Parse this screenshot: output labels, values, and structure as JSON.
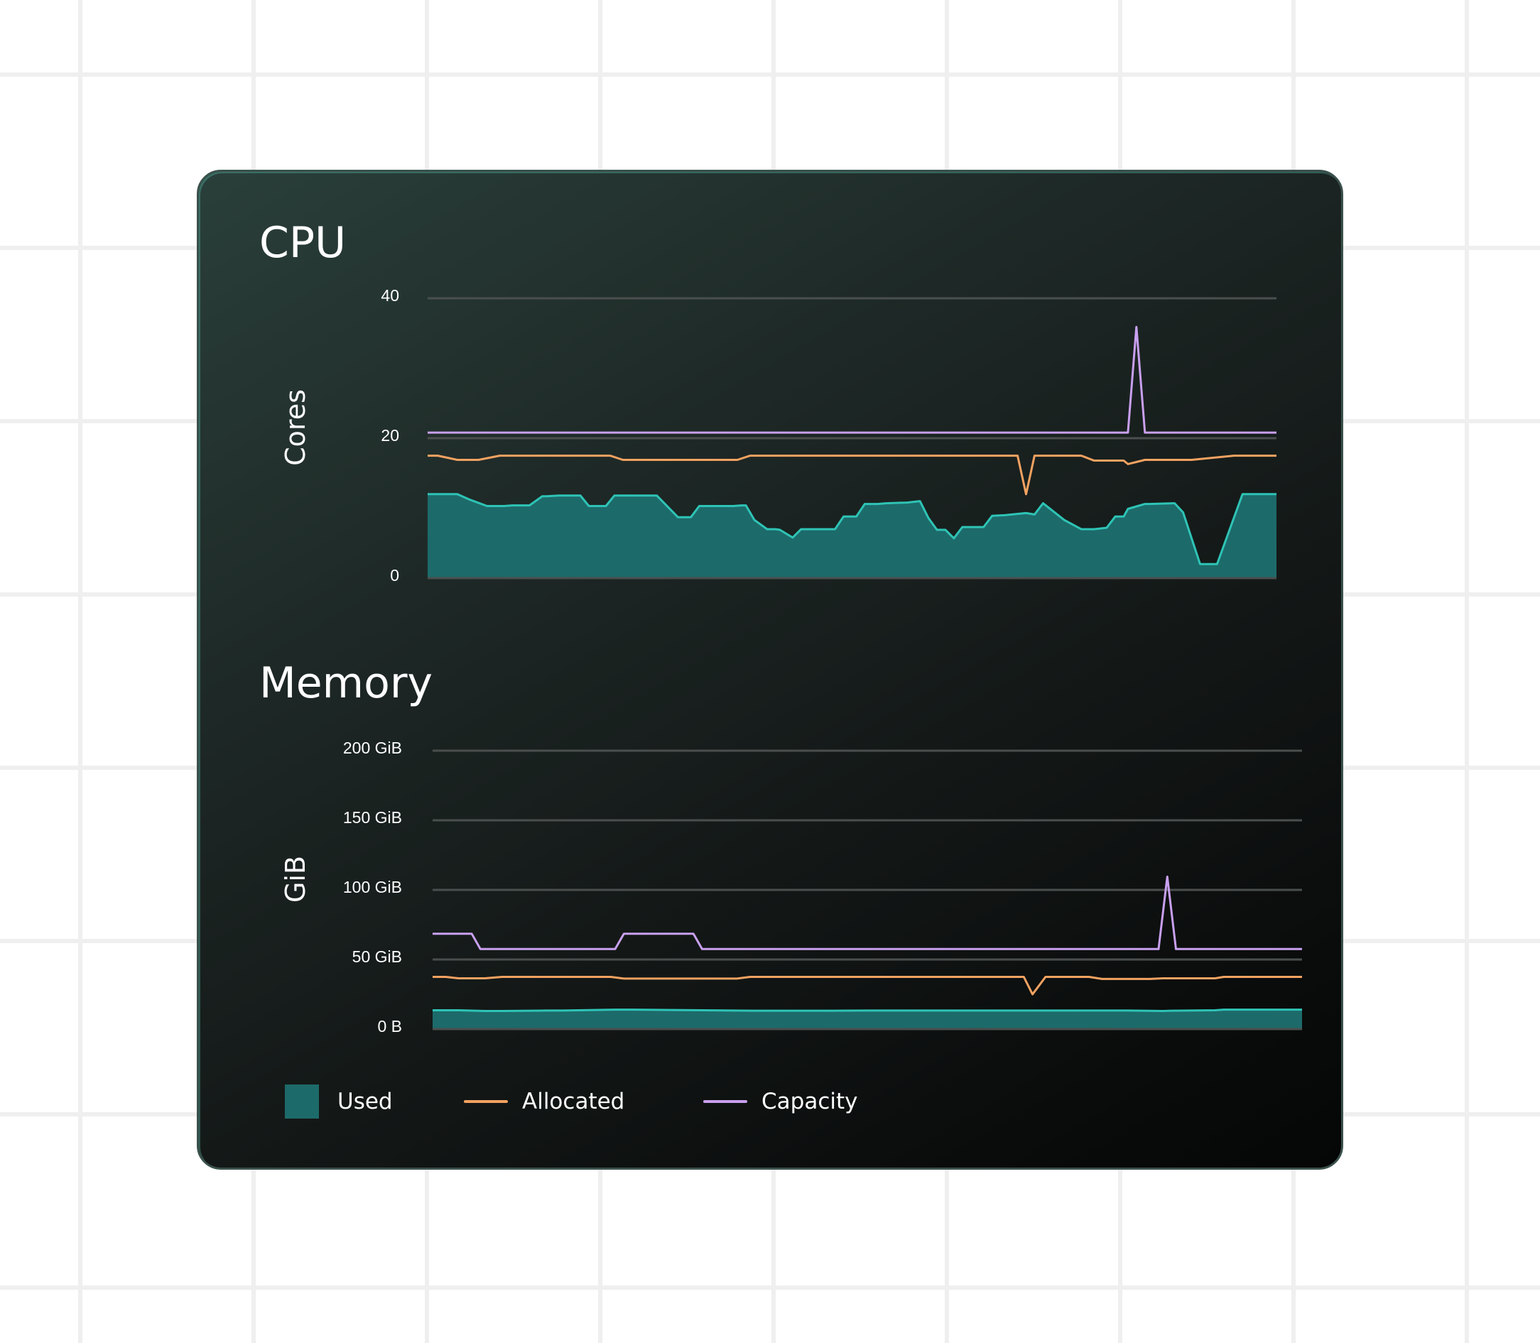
{
  "colors": {
    "used_fill": "#1d6a6a",
    "used_line": "#2ec4b6",
    "allocated": "#f4a261",
    "capacity": "#c9a0f0",
    "grid": "#4a4f4e"
  },
  "chart_data": [
    {
      "type": "area",
      "title": "CPU",
      "xlabel": "",
      "ylabel": "Cores",
      "ylim": [
        0,
        40
      ],
      "yticks": [
        "0",
        "20",
        "40"
      ],
      "grid": true,
      "series": [
        {
          "name": "Used",
          "kind": "area",
          "x": [
            0,
            3,
            3.5,
            5,
            7,
            9,
            10,
            12,
            13.5,
            14,
            15.5,
            16,
            18,
            19,
            21,
            22,
            23,
            24,
            25,
            27,
            29.5,
            31,
            32,
            35,
            36,
            37,
            37.5,
            38.5,
            40,
            41,
            41.5,
            43,
            44,
            48,
            49,
            50.5,
            51.5,
            52,
            53,
            54,
            56.5,
            58,
            59,
            60,
            61,
            62,
            63,
            64,
            65.5,
            66.5,
            68,
            70.5,
            71.5,
            72.5,
            75,
            77,
            78,
            78.5,
            80,
            81,
            82,
            82.5,
            84.5,
            85,
            88,
            89,
            91,
            93,
            96,
            100
          ],
          "values": [
            12.0,
            12.0,
            12.0,
            11.2,
            10.3,
            10.3,
            10.4,
            10.4,
            11.7,
            11.7,
            11.8,
            11.8,
            11.8,
            10.3,
            10.3,
            11.8,
            11.8,
            11.8,
            11.8,
            11.8,
            8.7,
            8.7,
            10.3,
            10.3,
            10.3,
            10.4,
            10.4,
            8.3,
            7.0,
            7.0,
            6.9,
            5.8,
            7.0,
            7.0,
            8.8,
            8.8,
            10.6,
            10.6,
            10.6,
            10.7,
            10.8,
            11.0,
            8.6,
            6.9,
            6.9,
            5.7,
            7.3,
            7.3,
            7.3,
            8.9,
            9.0,
            9.3,
            9.1,
            10.7,
            8.3,
            7.0,
            7.0,
            7.0,
            7.2,
            8.8,
            8.8,
            9.9,
            10.6,
            10.6,
            10.7,
            9.4,
            2.0,
            2.0,
            12.0,
            12.0
          ],
          "note": ""
        },
        {
          "name": "Allocated",
          "kind": "line",
          "x": [
            0,
            1.2,
            3.5,
            6,
            8.5,
            11,
            21.5,
            23,
            35,
            36.5,
            38,
            48,
            68,
            69.5,
            70.5,
            71.5,
            73,
            75,
            77,
            78.5,
            80.5,
            82,
            82.5,
            83.5,
            84.5,
            86,
            88,
            90,
            95,
            100
          ],
          "values": [
            17.5,
            17.5,
            16.9,
            16.9,
            17.5,
            17.5,
            17.5,
            16.9,
            16.9,
            16.9,
            17.5,
            17.5,
            17.5,
            17.5,
            12.0,
            17.5,
            17.5,
            17.5,
            17.5,
            16.8,
            16.8,
            16.8,
            16.3,
            16.6,
            16.9,
            16.9,
            16.9,
            16.9,
            17.5,
            17.5
          ]
        },
        {
          "name": "Capacity",
          "kind": "line",
          "x": [
            0,
            75,
            82.5,
            83.5,
            84.5,
            100
          ],
          "values": [
            20.8,
            20.8,
            20.8,
            35.9,
            20.8,
            20.8
          ]
        }
      ]
    },
    {
      "type": "area",
      "title": "Memory",
      "xlabel": "",
      "ylabel": "GiB",
      "ylim": [
        0,
        200
      ],
      "yticks": [
        "0 B",
        "50 GiB",
        "100 GiB",
        "150 GiB",
        "200 GiB"
      ],
      "grid": true,
      "series": [
        {
          "name": "Used",
          "kind": "area",
          "x": [
            0,
            3,
            6,
            8,
            13,
            15,
            21,
            23,
            37,
            38,
            46,
            50,
            60,
            62,
            70,
            75,
            80,
            84,
            85,
            90,
            91,
            100
          ],
          "values": [
            13.5,
            13.5,
            13.0,
            13.0,
            13.3,
            13.3,
            14.0,
            14.0,
            13.2,
            13.2,
            13.2,
            13.3,
            13.3,
            13.3,
            13.3,
            13.3,
            13.3,
            13.0,
            13.2,
            13.5,
            14.0,
            14.0
          ],
          "note": ""
        },
        {
          "name": "Allocated",
          "kind": "line",
          "x": [
            0,
            1.5,
            3,
            6,
            8,
            20.5,
            22,
            31,
            35,
            36.5,
            67,
            68,
            69,
            70.5,
            73.5,
            75.5,
            77,
            82.5,
            84,
            90,
            91,
            100
          ],
          "values": [
            37.5,
            37.5,
            36.5,
            36.5,
            37.5,
            37.5,
            36.3,
            36.3,
            36.3,
            37.5,
            37.5,
            37.5,
            25.0,
            37.5,
            37.5,
            37.5,
            36.0,
            36.0,
            36.5,
            36.5,
            37.5,
            37.5
          ]
        },
        {
          "name": "Capacity",
          "kind": "line",
          "x": [
            0,
            4.5,
            5.5,
            21,
            22,
            30,
            31,
            50,
            69.5,
            82,
            83.5,
            84.5,
            85.5,
            100
          ],
          "values": [
            68.5,
            68.5,
            57.5,
            57.5,
            68.5,
            68.5,
            57.5,
            57.5,
            57.5,
            57.5,
            57.5,
            109.5,
            57.5,
            57.5
          ]
        }
      ]
    }
  ],
  "legend": {
    "used": "Used",
    "allocated": "Allocated",
    "capacity": "Capacity"
  }
}
